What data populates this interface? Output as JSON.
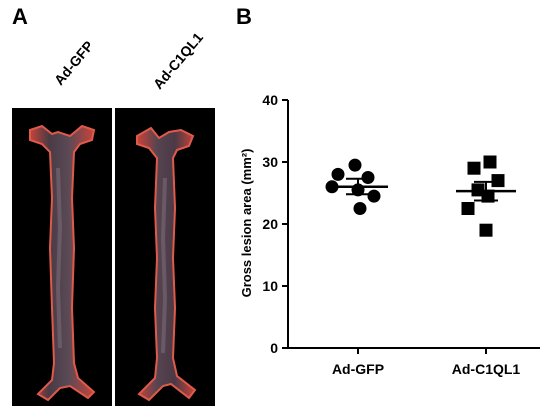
{
  "panels": {
    "a_letter": "A",
    "b_letter": "B",
    "photo_labels": [
      "Ad-GFP",
      "Ad-C1QL1"
    ]
  },
  "colors": {
    "tissue": "#d4413a",
    "tissue_dark": "#3a2a2e",
    "background": "#000000"
  },
  "chart_data": {
    "type": "scatter",
    "title": "",
    "xlabel": "",
    "ylabel": "Gross lesion area (mm²)",
    "categories": [
      "Ad-GFP",
      "Ad-C1QL1"
    ],
    "ylim": [
      0,
      40
    ],
    "yticks": [
      0,
      10,
      20,
      30,
      40
    ],
    "series": [
      {
        "category": "Ad-GFP",
        "marker": "circle",
        "values": [
          29.5,
          28.0,
          27.5,
          26.0,
          25.5,
          24.5,
          22.5
        ],
        "mean": 26.0,
        "sem_upper": 27.3,
        "sem_lower": 24.8
      },
      {
        "category": "Ad-C1QL1",
        "marker": "square",
        "values": [
          30.0,
          29.0,
          27.0,
          25.5,
          24.5,
          22.5,
          19.0
        ],
        "mean": 25.3,
        "sem_upper": 26.8,
        "sem_lower": 23.8
      }
    ]
  }
}
